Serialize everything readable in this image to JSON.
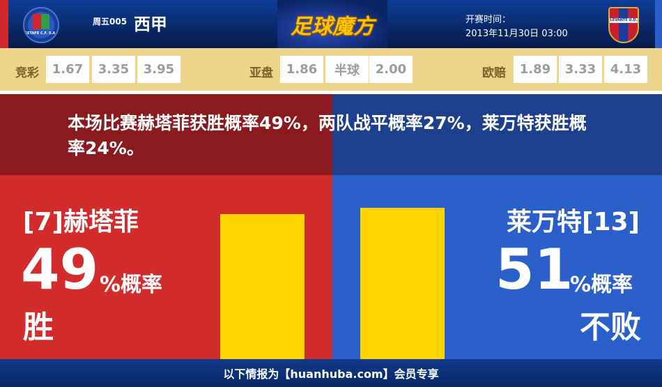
{
  "header": {
    "match_no": "周五005",
    "league": "西甲",
    "brand": "足球魔方",
    "kickoff_label": "开赛时间：",
    "kickoff_time": "2013年11月30日 03:00",
    "home_badge_text": "GETAFE C.F. S.A.D.",
    "away_badge_text": "LEVANTE U.D."
  },
  "odds": {
    "jingcai": {
      "label": "竞彩",
      "values": [
        "1.67",
        "3.35",
        "3.95"
      ]
    },
    "asian": {
      "label": "亚盘",
      "values": [
        "1.86",
        "半球",
        "2.00"
      ]
    },
    "euro": {
      "label": "欧赔",
      "values": [
        "1.89",
        "3.33",
        "4.13"
      ]
    }
  },
  "summary": "本场比赛赫塔菲获胜概率49%，两队战平概率27%，莱万特获胜概率24%。",
  "home": {
    "team": "[7]赫塔菲",
    "percent": "49",
    "unit": "%概率",
    "result": "胜",
    "value": 49,
    "color": "#d32c2c"
  },
  "away": {
    "team": "莱万特[13]",
    "percent": "51",
    "unit": "%概率",
    "result": "不败",
    "value": 51,
    "color": "#2b60cb"
  },
  "bar_color": "#ffd400",
  "footer": "以下情报为【huanhuba.com】会员专享"
}
